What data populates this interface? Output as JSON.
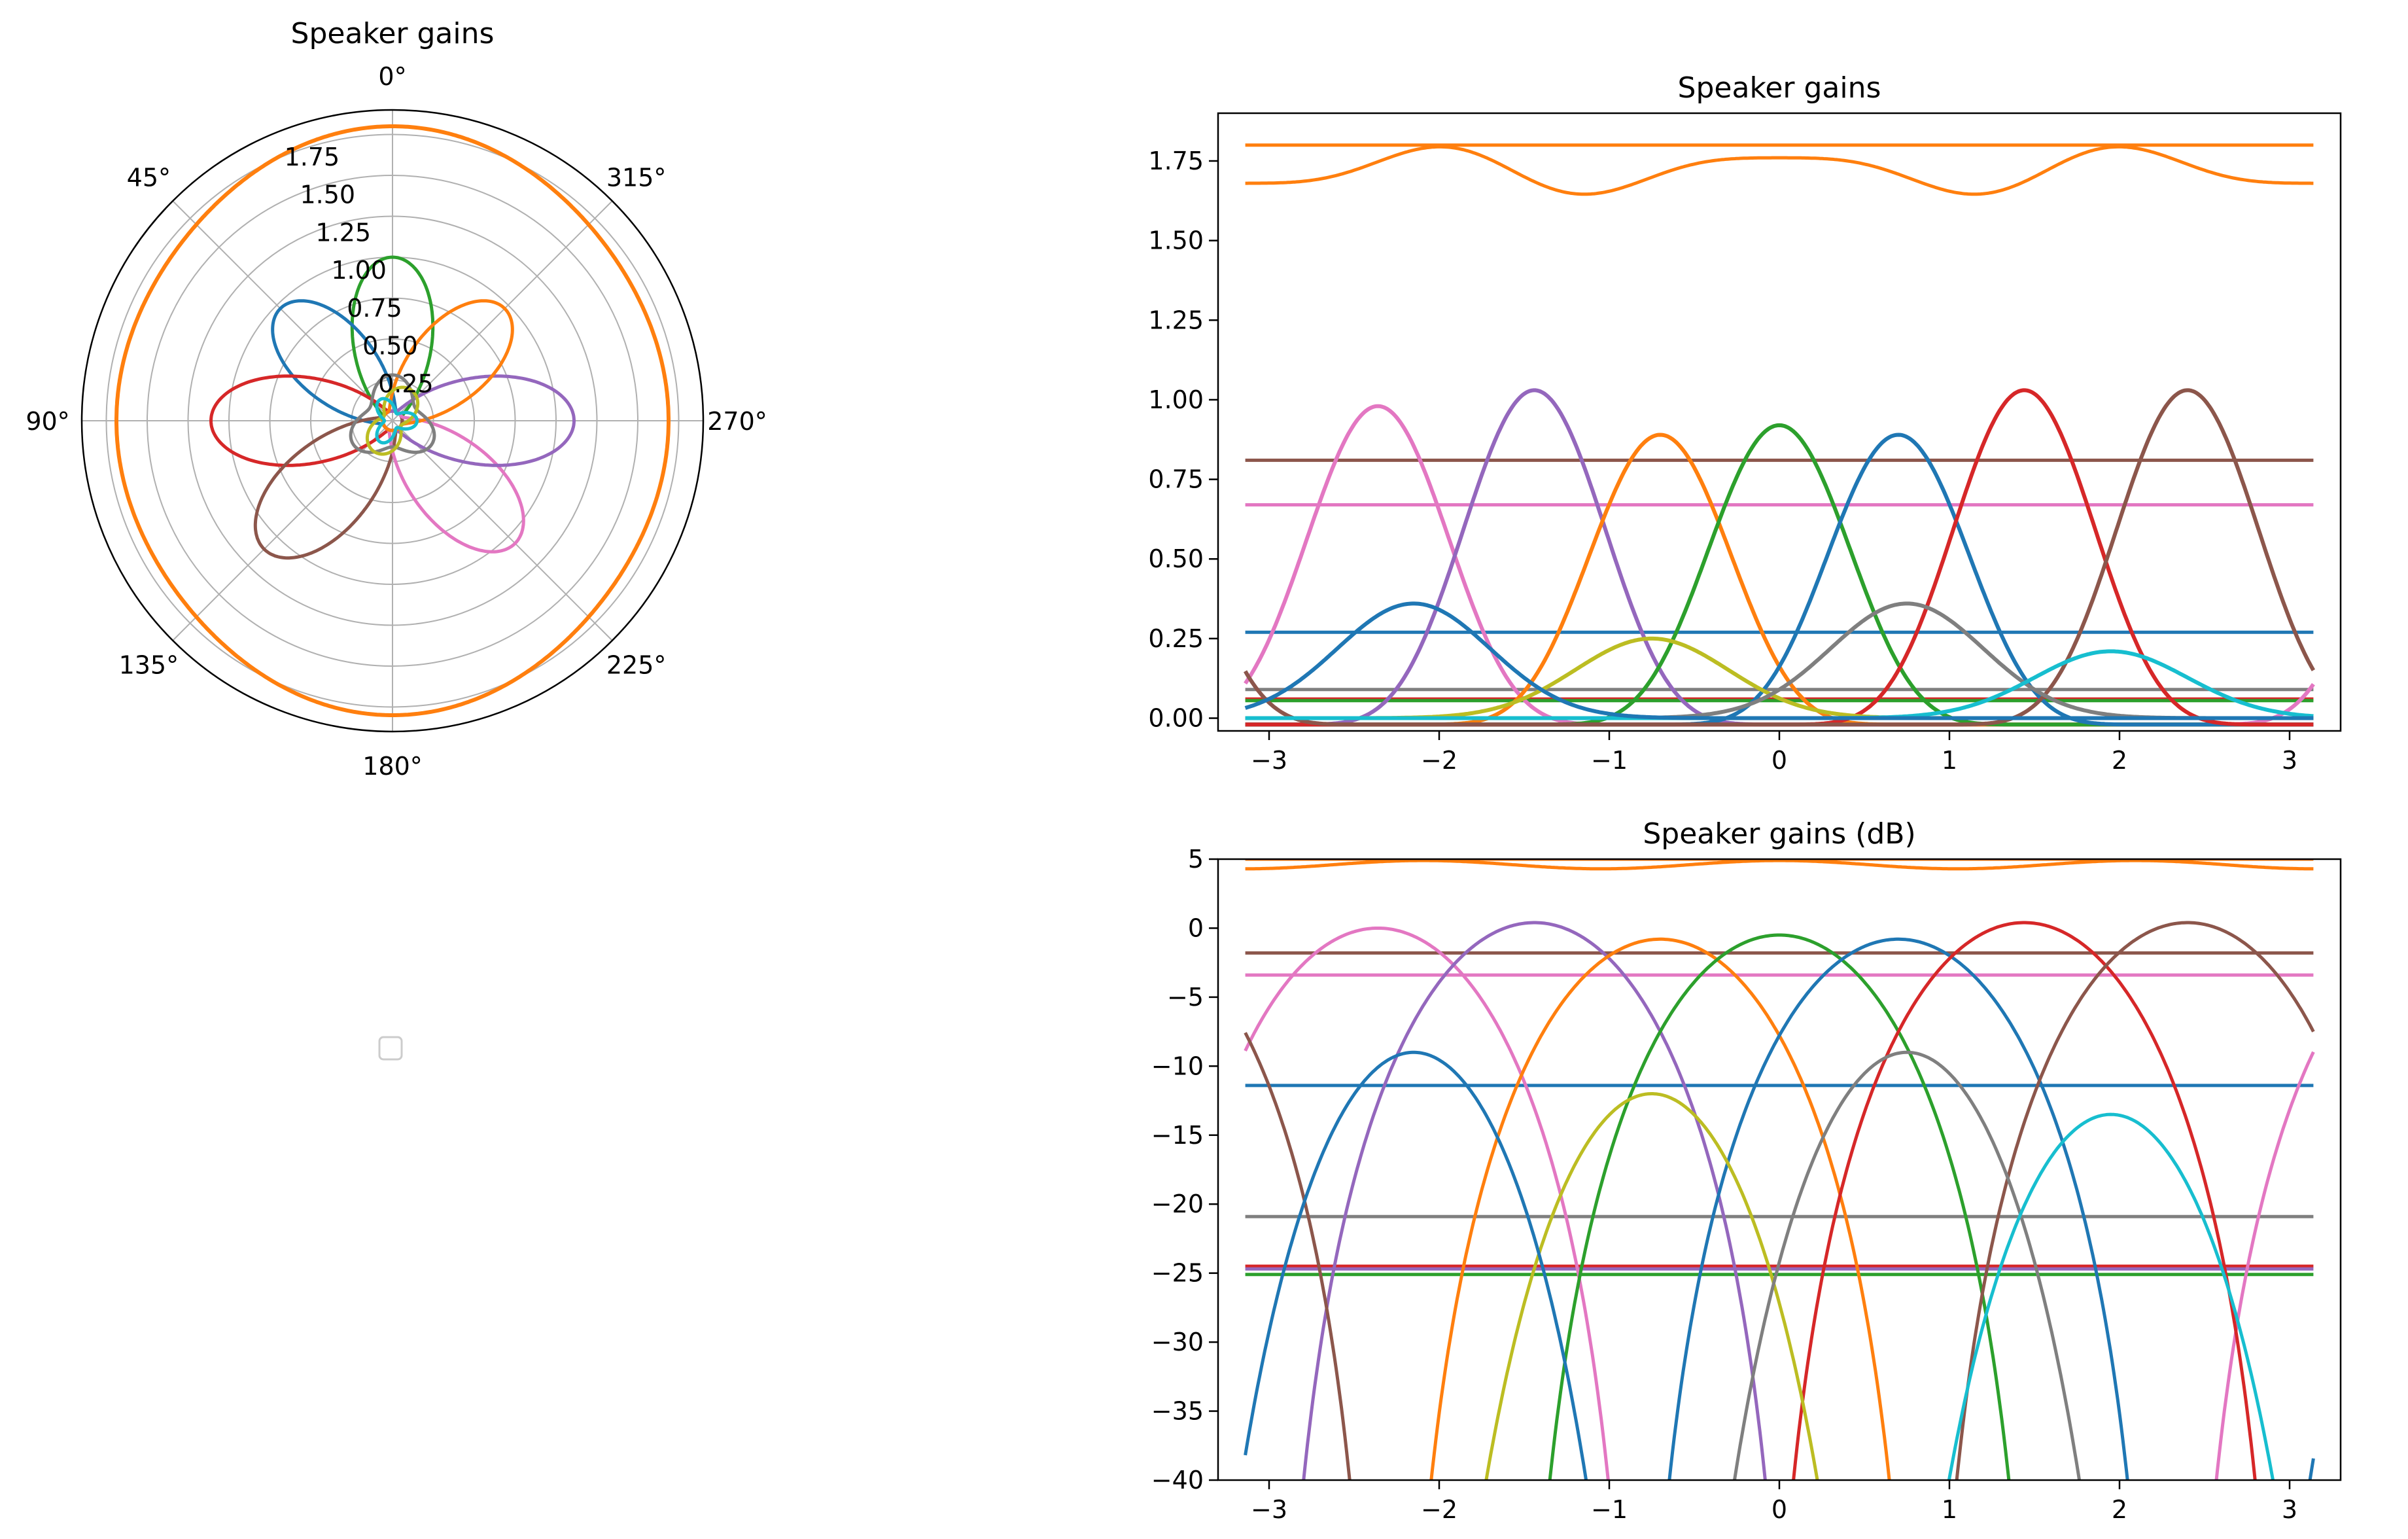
{
  "colors": {
    "c0": "#1f77b4",
    "c1": "#ff7f0e",
    "c2": "#2ca02c",
    "c3": "#d62728",
    "c4": "#9467bd",
    "c5": "#8c564b",
    "c6": "#e377c2",
    "c7": "#7f7f7f",
    "c8": "#bcbd22",
    "c9": "#17becf",
    "grid": "#b0b0b0",
    "axes": "#000000"
  },
  "chart_data": [
    {
      "type": "polar",
      "title": "Speaker gains",
      "theta_direction": "clockwise",
      "theta_zero": "top",
      "theta_ticks": [
        "0°",
        "45°",
        "90°",
        "135°",
        "180°",
        "225°",
        "270°",
        "315°"
      ],
      "r_ticks": [
        "0.25",
        "0.50",
        "0.75",
        "1.00",
        "1.25",
        "1.50",
        "1.75"
      ],
      "r_max": 1.9,
      "grid": true,
      "lobe_peaks_deg": [
        0,
        45,
        90,
        135,
        180,
        225,
        270,
        315
      ],
      "series": [
        {
          "color_key": "c1",
          "shape": "near-circle",
          "mean_r": 1.72,
          "max_r": 1.8
        },
        {
          "color_key": "c2",
          "peak_theta_deg": 0,
          "peak_r": 0.94
        },
        {
          "color_key": "c0",
          "peak_theta_deg": 45,
          "peak_r": 0.91
        },
        {
          "color_key": "c3",
          "peak_theta_deg": 90,
          "peak_r": 1.05
        },
        {
          "color_key": "c5",
          "peak_theta_deg": 135,
          "peak_r": 1.05
        },
        {
          "color_key": "c6",
          "peak_theta_deg": 225,
          "peak_r": 1.0
        },
        {
          "color_key": "c4",
          "peak_theta_deg": 270,
          "peak_r": 1.05
        },
        {
          "color_key": "c1",
          "peak_theta_deg": 315,
          "peak_r": 0.91
        }
      ]
    },
    {
      "type": "line",
      "title": "Speaker gains",
      "xlim": [
        -3.3,
        3.3
      ],
      "ylim": [
        -0.04,
        1.9
      ],
      "x_ticks": [
        -3,
        -2,
        -1,
        0,
        1,
        2,
        3
      ],
      "y_ticks": [
        "0.00",
        "0.25",
        "0.50",
        "0.75",
        "1.00",
        "1.25",
        "1.50",
        "1.75"
      ],
      "x_range": [
        -3.14,
        3.14
      ],
      "grid": false,
      "peaks": [
        {
          "color_key": "c6",
          "x": -2.36,
          "y": 1.0
        },
        {
          "color_key": "c4",
          "x": -1.44,
          "y": 1.05
        },
        {
          "color_key": "c1",
          "x": -0.7,
          "y": 0.91
        },
        {
          "color_key": "c2",
          "x": 0.0,
          "y": 0.94
        },
        {
          "color_key": "c0",
          "x": 0.7,
          "y": 0.91
        },
        {
          "color_key": "c3",
          "x": 1.44,
          "y": 1.05
        },
        {
          "color_key": "c5",
          "x": 2.4,
          "y": 1.05
        }
      ],
      "flat_lines": [
        {
          "color_key": "c1",
          "y": 1.8
        },
        {
          "color_key": "c5",
          "y": 0.81
        },
        {
          "color_key": "c6",
          "y": 0.67
        },
        {
          "color_key": "c0",
          "y": 0.27
        },
        {
          "color_key": "c7",
          "y": 0.09
        },
        {
          "color_key": "c3",
          "y": 0.06
        },
        {
          "color_key": "c2",
          "y": 0.055
        }
      ],
      "small_bumps": [
        {
          "color_key": "c8",
          "x": -0.75,
          "y": 0.25
        },
        {
          "color_key": "c7",
          "x": 0.75,
          "y": 0.36
        },
        {
          "color_key": "c9",
          "x": 1.95,
          "y": 0.21
        },
        {
          "color_key": "c0",
          "x": -2.15,
          "y": 0.36
        }
      ]
    },
    {
      "type": "line",
      "title": "Speaker gains (dB)",
      "xlim": [
        -3.3,
        3.3
      ],
      "ylim": [
        -40,
        5
      ],
      "x_ticks": [
        -3,
        -2,
        -1,
        0,
        1,
        2,
        3
      ],
      "y_ticks": [
        "5",
        "0",
        "-5",
        "-10",
        "-15",
        "-20",
        "-25",
        "-30",
        "-35",
        "-40"
      ],
      "x_range": [
        -3.14,
        3.14
      ],
      "grid": false,
      "flat_lines_db": [
        {
          "color_key": "c1",
          "y": 5.0
        },
        {
          "color_key": "c5",
          "y": -1.8
        },
        {
          "color_key": "c6",
          "y": -3.4
        },
        {
          "color_key": "c0",
          "y": -11.4
        },
        {
          "color_key": "c7",
          "y": -20.9
        },
        {
          "color_key": "c3",
          "y": -24.5
        },
        {
          "color_key": "c2",
          "y": -25.1
        },
        {
          "color_key": "c4",
          "y": -24.7
        }
      ],
      "peaks_db": [
        {
          "color_key": "c6",
          "x": -2.36,
          "y": 0.0
        },
        {
          "color_key": "c4",
          "x": -1.44,
          "y": 0.4
        },
        {
          "color_key": "c1",
          "x": -0.7,
          "y": -0.8
        },
        {
          "color_key": "c2",
          "x": 0.0,
          "y": -0.5
        },
        {
          "color_key": "c0",
          "x": 0.7,
          "y": -0.8
        },
        {
          "color_key": "c3",
          "x": 1.44,
          "y": 0.4
        },
        {
          "color_key": "c5",
          "x": 2.4,
          "y": 0.4
        },
        {
          "color_key": "c8",
          "x": -0.75,
          "y": -12.0
        },
        {
          "color_key": "c7",
          "x": 0.75,
          "y": -9.0
        },
        {
          "color_key": "c9",
          "x": 1.95,
          "y": -13.5
        },
        {
          "color_key": "c0",
          "x": -2.15,
          "y": -9.0
        }
      ]
    }
  ],
  "legend": {
    "entries": []
  }
}
